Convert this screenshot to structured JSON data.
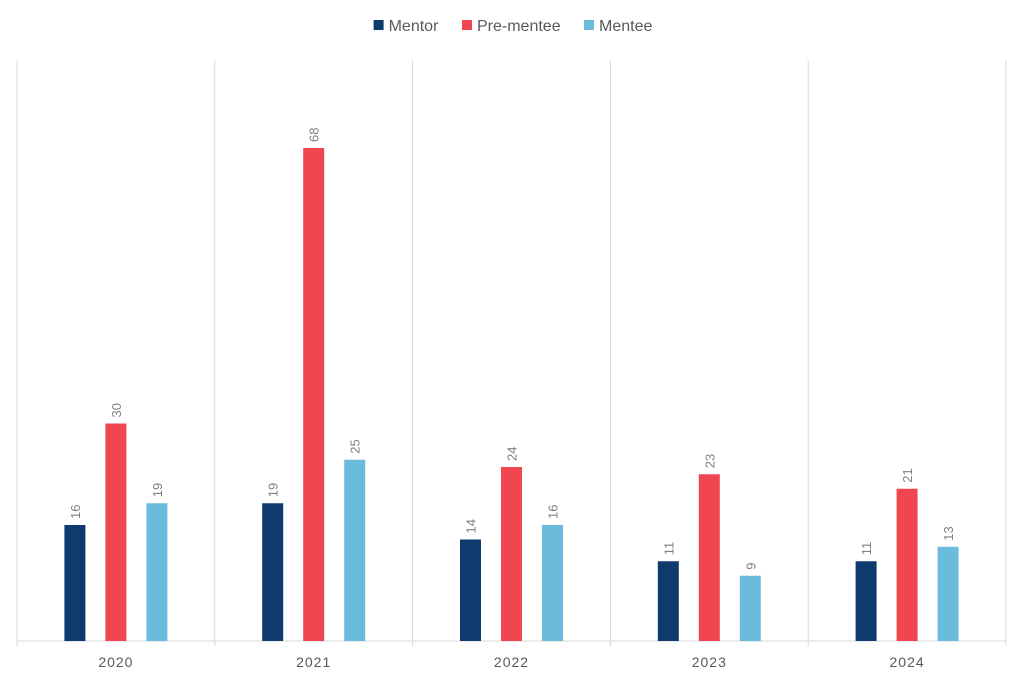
{
  "chart_data": {
    "type": "bar",
    "title": "",
    "xlabel": "",
    "ylabel": "",
    "categories": [
      "2020",
      "2021",
      "2022",
      "2023",
      "2024"
    ],
    "series": [
      {
        "name": "Mentor",
        "color": "#0f3a6e",
        "values": [
          16,
          19,
          14,
          11,
          11
        ]
      },
      {
        "name": "Pre-mentee",
        "color": "#ef4650",
        "values": [
          30,
          68,
          24,
          23,
          21
        ]
      },
      {
        "name": "Mentee",
        "color": "#6bbcdc",
        "values": [
          19,
          25,
          16,
          9,
          13
        ]
      }
    ],
    "ylim": [
      0,
      80
    ],
    "grid": "vertical category separators",
    "legend": "top-center",
    "data_labels": true
  }
}
